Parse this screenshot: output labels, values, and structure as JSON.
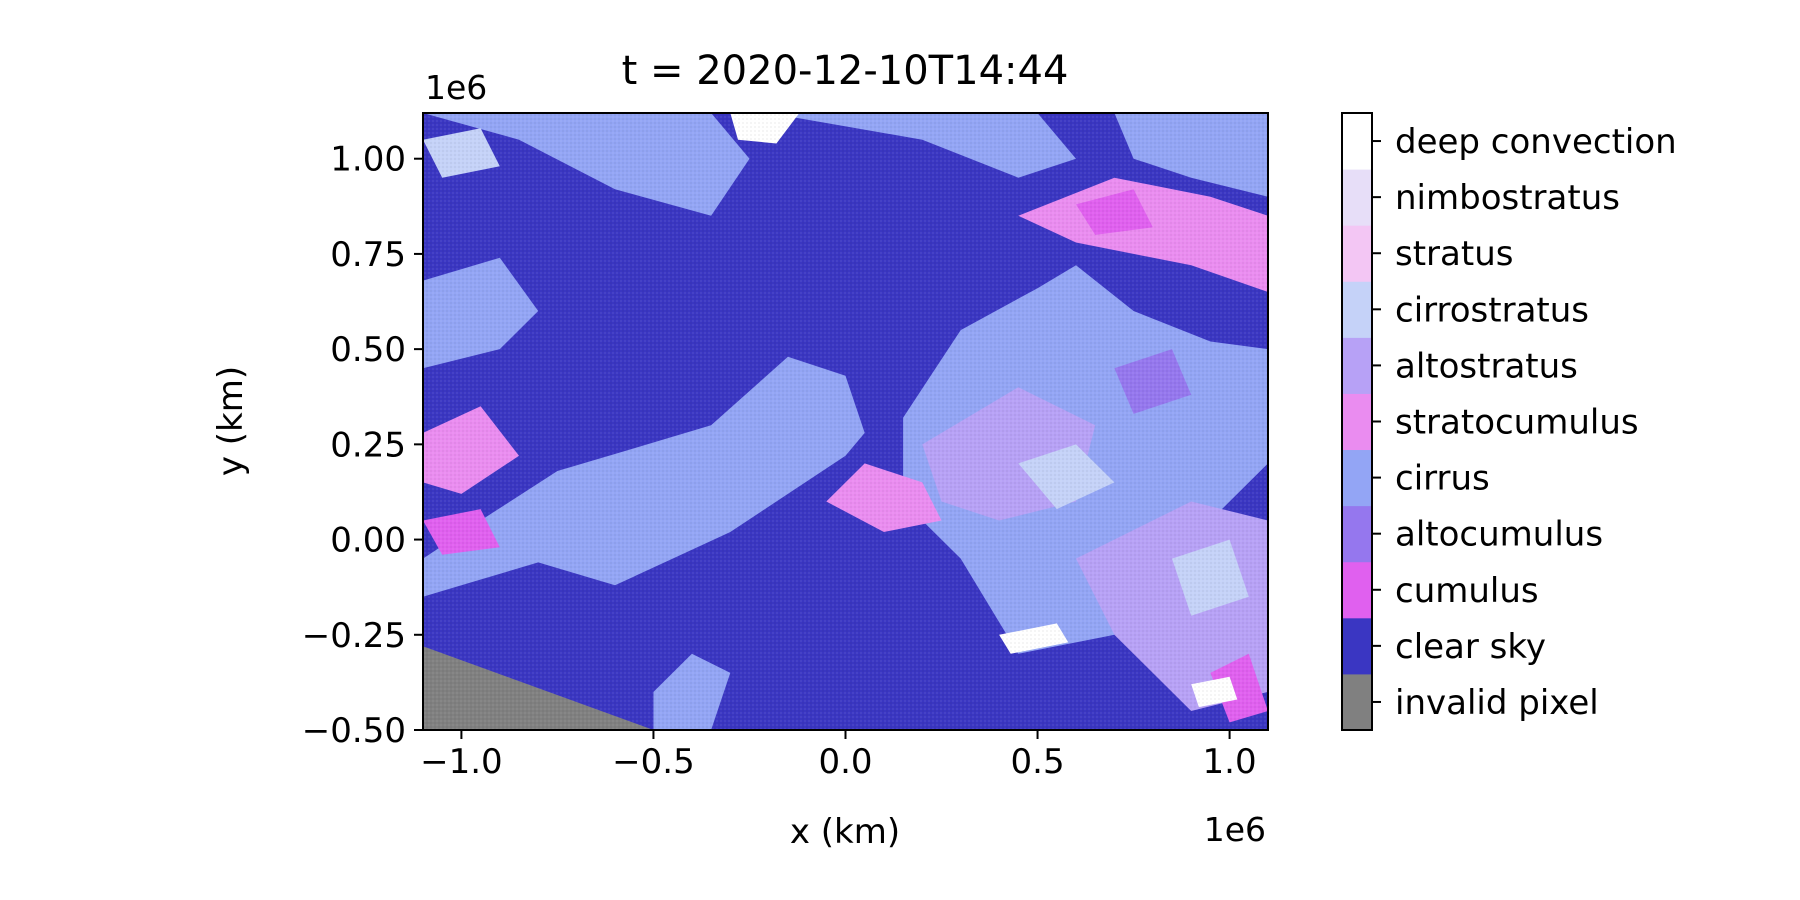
{
  "chart_data": {
    "type": "heatmap",
    "title": "t = 2020-12-10T14:44",
    "xlabel": "x (km)",
    "ylabel": "y (km)",
    "x_offset_label": "1e6",
    "y_offset_label": "1e6",
    "xlim": [
      -1.1,
      1.1
    ],
    "ylim": [
      -0.5,
      1.12
    ],
    "x_scale_factor": 1000000,
    "y_scale_factor": 1000000,
    "x_ticks": [
      -1.0,
      -0.5,
      0.0,
      0.5,
      1.0
    ],
    "x_tick_labels": [
      "−1.0",
      "−0.5",
      "0.0",
      "0.5",
      "1.0"
    ],
    "y_ticks": [
      -0.5,
      -0.25,
      0.0,
      0.25,
      0.5,
      0.75,
      1.0
    ],
    "y_tick_labels": [
      "−0.50",
      "−0.25",
      "0.00",
      "0.25",
      "0.50",
      "0.75",
      "1.00"
    ],
    "grid": false,
    "colorbar": {
      "position": "right",
      "classes": [
        {
          "label": "invalid pixel",
          "color": "#808080"
        },
        {
          "label": "clear sky",
          "color": "#3a36c2"
        },
        {
          "label": "cumulus",
          "color": "#e060ef"
        },
        {
          "label": "altocumulus",
          "color": "#9577ee"
        },
        {
          "label": "cirrus",
          "color": "#93a5f5"
        },
        {
          "label": "stratocumulus",
          "color": "#ea8cf0"
        },
        {
          "label": "altostratus",
          "color": "#b7a1f6"
        },
        {
          "label": "cirrostratus",
          "color": "#c5d2f8"
        },
        {
          "label": "stratus",
          "color": "#f3c6f4"
        },
        {
          "label": "nimbostratus",
          "color": "#e7def8"
        },
        {
          "label": "deep convection",
          "color": "#ffffff"
        }
      ]
    },
    "regions": [
      {
        "class": "invalid pixel",
        "polygon": [
          [
            -1.1,
            -0.5
          ],
          [
            -1.1,
            -0.28
          ],
          [
            -0.5,
            -0.5
          ]
        ]
      },
      {
        "class": "cirrus",
        "polygon": [
          [
            -1.1,
            -0.05
          ],
          [
            -0.95,
            0.05
          ],
          [
            -0.75,
            0.18
          ],
          [
            -0.55,
            0.24
          ],
          [
            -0.35,
            0.3
          ],
          [
            -0.15,
            0.48
          ],
          [
            0.0,
            0.43
          ],
          [
            0.05,
            0.28
          ],
          [
            0.0,
            0.22
          ],
          [
            -0.15,
            0.12
          ],
          [
            -0.3,
            0.02
          ],
          [
            -0.45,
            -0.05
          ],
          [
            -0.6,
            -0.12
          ],
          [
            -0.8,
            -0.06
          ],
          [
            -1.0,
            -0.12
          ],
          [
            -1.1,
            -0.15
          ]
        ]
      },
      {
        "class": "cirrus",
        "polygon": [
          [
            0.15,
            0.32
          ],
          [
            0.3,
            0.55
          ],
          [
            0.5,
            0.66
          ],
          [
            0.6,
            0.72
          ],
          [
            0.75,
            0.6
          ],
          [
            0.95,
            0.52
          ],
          [
            1.1,
            0.5
          ],
          [
            1.1,
            0.2
          ],
          [
            0.9,
            0.0
          ],
          [
            0.7,
            -0.25
          ],
          [
            0.45,
            -0.3
          ],
          [
            0.3,
            -0.05
          ],
          [
            0.15,
            0.1
          ]
        ]
      },
      {
        "class": "cirrus",
        "polygon": [
          [
            -1.1,
            1.12
          ],
          [
            -0.85,
            1.05
          ],
          [
            -0.6,
            0.92
          ],
          [
            -0.35,
            0.85
          ],
          [
            -0.25,
            1.0
          ],
          [
            -0.35,
            1.12
          ]
        ]
      },
      {
        "class": "cirrus",
        "polygon": [
          [
            -0.2,
            1.12
          ],
          [
            0.2,
            1.05
          ],
          [
            0.45,
            0.95
          ],
          [
            0.6,
            1.0
          ],
          [
            0.5,
            1.12
          ]
        ]
      },
      {
        "class": "cirrus",
        "polygon": [
          [
            0.7,
            1.12
          ],
          [
            1.1,
            1.12
          ],
          [
            1.1,
            0.9
          ],
          [
            0.9,
            0.95
          ],
          [
            0.75,
            1.0
          ]
        ]
      },
      {
        "class": "cirrus",
        "polygon": [
          [
            -1.1,
            0.68
          ],
          [
            -0.9,
            0.74
          ],
          [
            -0.8,
            0.6
          ],
          [
            -0.9,
            0.5
          ],
          [
            -1.1,
            0.45
          ]
        ]
      },
      {
        "class": "cirrus",
        "polygon": [
          [
            -0.5,
            -0.4
          ],
          [
            -0.4,
            -0.3
          ],
          [
            -0.3,
            -0.35
          ],
          [
            -0.35,
            -0.5
          ],
          [
            -0.5,
            -0.5
          ]
        ]
      },
      {
        "class": "altostratus",
        "polygon": [
          [
            0.2,
            0.25
          ],
          [
            0.45,
            0.4
          ],
          [
            0.65,
            0.3
          ],
          [
            0.6,
            0.1
          ],
          [
            0.4,
            0.05
          ],
          [
            0.25,
            0.1
          ]
        ]
      },
      {
        "class": "altostratus",
        "polygon": [
          [
            0.6,
            -0.05
          ],
          [
            0.9,
            0.1
          ],
          [
            1.1,
            0.05
          ],
          [
            1.1,
            -0.4
          ],
          [
            0.9,
            -0.45
          ],
          [
            0.7,
            -0.25
          ]
        ]
      },
      {
        "class": "stratocumulus",
        "polygon": [
          [
            0.45,
            0.85
          ],
          [
            0.7,
            0.95
          ],
          [
            0.95,
            0.9
          ],
          [
            1.1,
            0.85
          ],
          [
            1.1,
            0.65
          ],
          [
            0.9,
            0.72
          ],
          [
            0.6,
            0.78
          ]
        ]
      },
      {
        "class": "stratocumulus",
        "polygon": [
          [
            -1.1,
            0.28
          ],
          [
            -0.95,
            0.35
          ],
          [
            -0.85,
            0.22
          ],
          [
            -1.0,
            0.12
          ],
          [
            -1.1,
            0.15
          ]
        ]
      },
      {
        "class": "stratocumulus",
        "polygon": [
          [
            0.05,
            0.2
          ],
          [
            0.2,
            0.15
          ],
          [
            0.25,
            0.05
          ],
          [
            0.1,
            0.02
          ],
          [
            -0.05,
            0.1
          ]
        ]
      },
      {
        "class": "cumulus",
        "polygon": [
          [
            -1.1,
            0.05
          ],
          [
            -0.95,
            0.08
          ],
          [
            -0.9,
            -0.02
          ],
          [
            -1.05,
            -0.04
          ]
        ]
      },
      {
        "class": "cumulus",
        "polygon": [
          [
            0.6,
            0.88
          ],
          [
            0.75,
            0.92
          ],
          [
            0.8,
            0.82
          ],
          [
            0.65,
            0.8
          ]
        ]
      },
      {
        "class": "cumulus",
        "polygon": [
          [
            0.95,
            -0.35
          ],
          [
            1.05,
            -0.3
          ],
          [
            1.1,
            -0.45
          ],
          [
            1.0,
            -0.48
          ]
        ]
      },
      {
        "class": "cirrostratus",
        "polygon": [
          [
            0.45,
            0.2
          ],
          [
            0.6,
            0.25
          ],
          [
            0.7,
            0.15
          ],
          [
            0.55,
            0.08
          ]
        ]
      },
      {
        "class": "cirrostratus",
        "polygon": [
          [
            0.85,
            -0.05
          ],
          [
            1.0,
            0.0
          ],
          [
            1.05,
            -0.15
          ],
          [
            0.9,
            -0.2
          ]
        ]
      },
      {
        "class": "cirrostratus",
        "polygon": [
          [
            -1.1,
            1.05
          ],
          [
            -0.95,
            1.08
          ],
          [
            -0.9,
            0.98
          ],
          [
            -1.05,
            0.95
          ]
        ]
      },
      {
        "class": "altocumulus",
        "polygon": [
          [
            0.7,
            0.45
          ],
          [
            0.85,
            0.5
          ],
          [
            0.9,
            0.38
          ],
          [
            0.75,
            0.33
          ]
        ]
      },
      {
        "class": "deep convection",
        "polygon": [
          [
            -0.3,
            1.12
          ],
          [
            -0.12,
            1.12
          ],
          [
            -0.18,
            1.04
          ],
          [
            -0.28,
            1.05
          ]
        ]
      },
      {
        "class": "deep convection",
        "polygon": [
          [
            0.4,
            -0.25
          ],
          [
            0.55,
            -0.22
          ],
          [
            0.58,
            -0.27
          ],
          [
            0.43,
            -0.3
          ]
        ]
      },
      {
        "class": "deep convection",
        "polygon": [
          [
            0.9,
            -0.38
          ],
          [
            1.0,
            -0.36
          ],
          [
            1.02,
            -0.42
          ],
          [
            0.92,
            -0.44
          ]
        ]
      }
    ]
  }
}
